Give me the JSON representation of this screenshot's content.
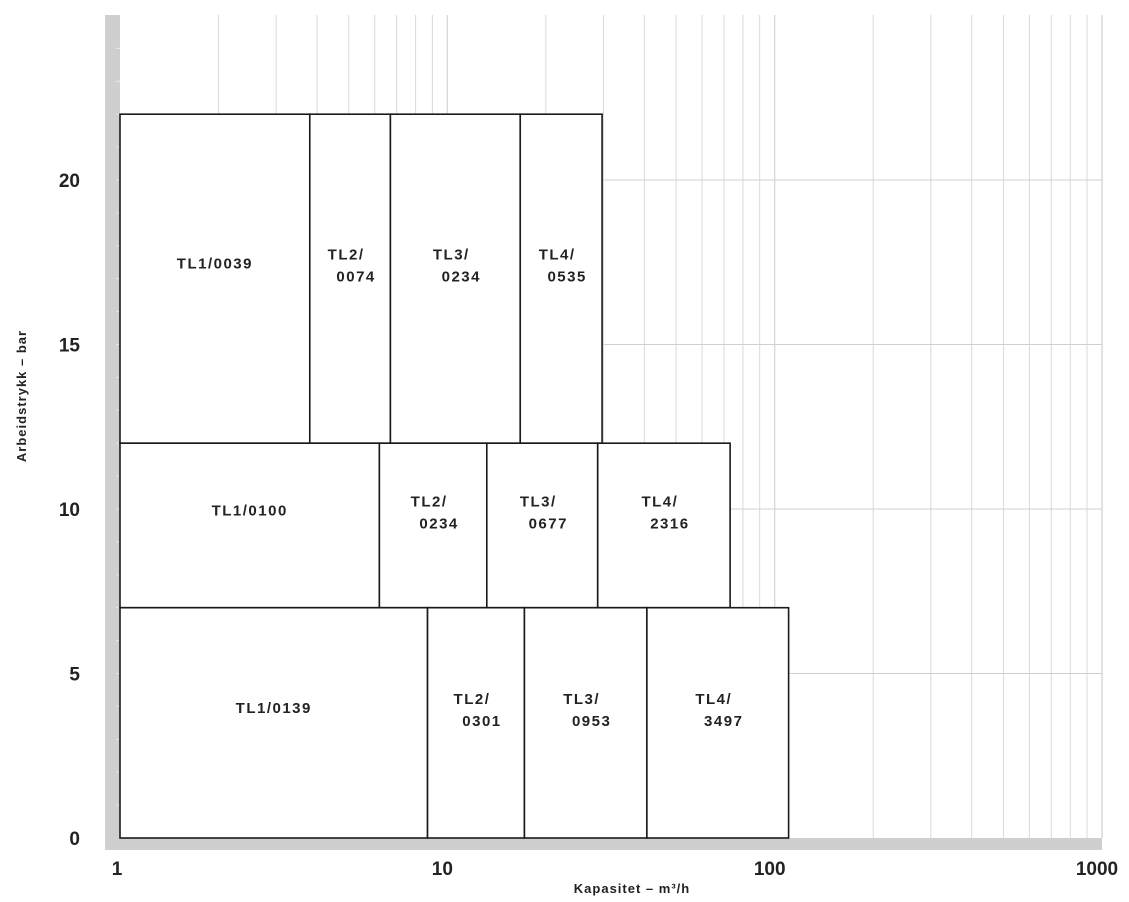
{
  "chart_data": {
    "type": "region-map",
    "xlabel": "Kapasitet – m³/h",
    "ylabel": "Arbeidstrykk – bar",
    "x_scale": "log",
    "xlim": [
      1,
      1000
    ],
    "ylim": [
      0,
      25
    ],
    "x_ticks": [
      {
        "value": 1,
        "label": "1"
      },
      {
        "value": 10,
        "label": "10"
      },
      {
        "value": 100,
        "label": "100"
      },
      {
        "value": 1000,
        "label": "1000"
      }
    ],
    "y_ticks": [
      {
        "value": 0,
        "label": "0"
      },
      {
        "value": 5,
        "label": "5"
      },
      {
        "value": 10,
        "label": "10"
      },
      {
        "value": 15,
        "label": "15"
      },
      {
        "value": 20,
        "label": "20"
      }
    ],
    "grid": true,
    "regions": [
      {
        "lines": [
          "TL1/0039"
        ],
        "x": [
          1,
          3.8
        ],
        "y": [
          12,
          22
        ]
      },
      {
        "lines": [
          "TL2/",
          "0074"
        ],
        "x": [
          3.8,
          6.7
        ],
        "y": [
          12,
          22
        ]
      },
      {
        "lines": [
          "TL3/",
          "0234"
        ],
        "x": [
          6.7,
          16.7
        ],
        "y": [
          12,
          22
        ]
      },
      {
        "lines": [
          "TL4/",
          "0535"
        ],
        "x": [
          16.7,
          29.7
        ],
        "y": [
          12,
          22
        ]
      },
      {
        "lines": [
          "TL1/0100"
        ],
        "x": [
          1,
          6.2
        ],
        "y": [
          7,
          12
        ]
      },
      {
        "lines": [
          "TL2/",
          "0234"
        ],
        "x": [
          6.2,
          13.2
        ],
        "y": [
          7,
          12
        ]
      },
      {
        "lines": [
          "TL3/",
          "0677"
        ],
        "x": [
          13.2,
          28.8
        ],
        "y": [
          7,
          12
        ]
      },
      {
        "lines": [
          "TL4/",
          "2316"
        ],
        "x": [
          28.8,
          73.1
        ],
        "y": [
          7,
          12
        ]
      },
      {
        "lines": [
          "TL1/0139"
        ],
        "x": [
          1,
          8.7
        ],
        "y": [
          0,
          7
        ]
      },
      {
        "lines": [
          "TL2/",
          "0301"
        ],
        "x": [
          8.7,
          17.2
        ],
        "y": [
          0,
          7
        ]
      },
      {
        "lines": [
          "TL3/",
          "0953"
        ],
        "x": [
          17.2,
          40.7
        ],
        "y": [
          0,
          7
        ]
      },
      {
        "lines": [
          "TL4/",
          "3497"
        ],
        "x": [
          40.7,
          110.3
        ],
        "y": [
          0,
          7
        ]
      }
    ]
  }
}
